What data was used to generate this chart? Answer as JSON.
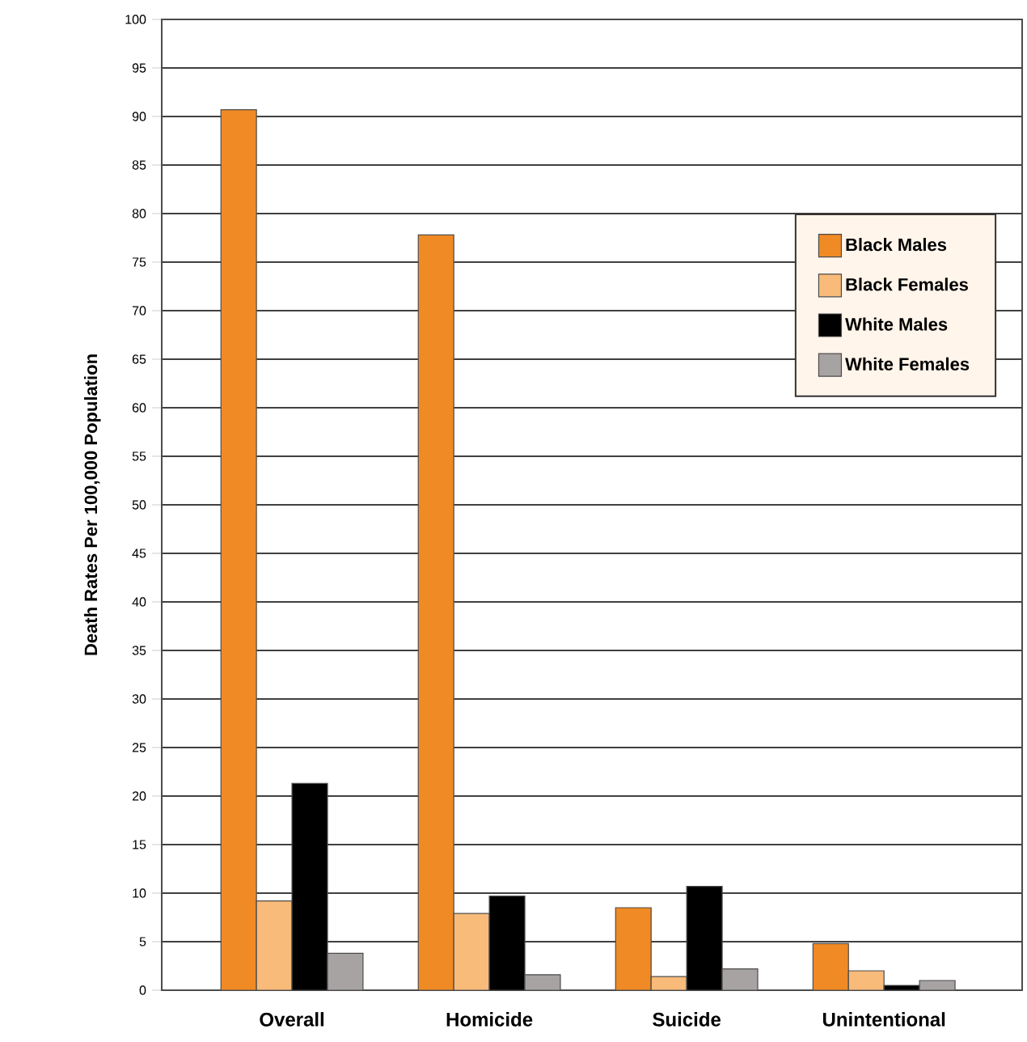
{
  "chart_data": {
    "type": "bar",
    "ylabel": "Death Rates Per 100,000 Population",
    "categories": [
      "Overall",
      "Homicide",
      "Suicide",
      "Unintentional"
    ],
    "series": [
      {
        "name": "Black Males",
        "color": "#f08a24",
        "values": [
          90.7,
          77.8,
          8.5,
          4.8
        ]
      },
      {
        "name": "Black Females",
        "color": "#f8bb7a",
        "values": [
          9.2,
          7.9,
          1.4,
          2.0
        ]
      },
      {
        "name": "White Males",
        "color": "#000000",
        "values": [
          21.3,
          9.7,
          10.7,
          0.5
        ]
      },
      {
        "name": "White Females",
        "color": "#a8a3a3",
        "values": [
          3.8,
          1.6,
          2.2,
          1.0
        ]
      }
    ],
    "ylim": [
      0,
      100
    ],
    "yticks": [
      0,
      5,
      10,
      15,
      20,
      25,
      30,
      35,
      40,
      45,
      50,
      55,
      60,
      65,
      70,
      75,
      80,
      85,
      90,
      95,
      100
    ],
    "grid": "y",
    "legend": "top right"
  }
}
